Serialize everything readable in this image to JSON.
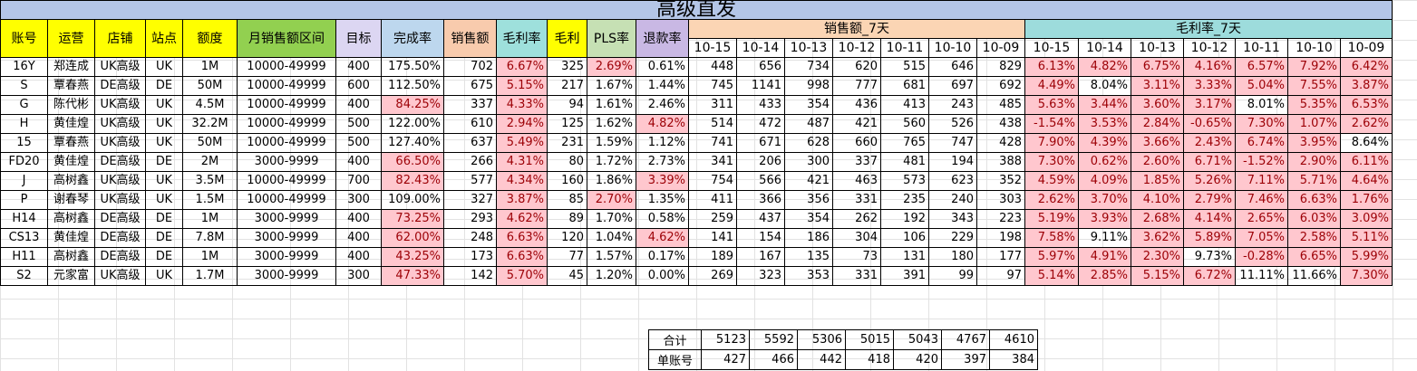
{
  "title": "高级直发",
  "colors": {
    "title_bg": "#b4c6e7",
    "yellow": "#ffff00",
    "green": "#92d050",
    "lilac": "#dcd6f2",
    "blue": "#bdd7ee",
    "peach": "#f8cbad",
    "teal": "#9ee0dc",
    "lime": "#c6e0b4",
    "lavender": "#c9b8e4",
    "sales_bg": "#fbd5b4",
    "margin_bg": "#9ddcdc",
    "highlight_bg": "#ffc7ce",
    "highlight_text": "#9c0006"
  },
  "headers": [
    "账号",
    "运营",
    "店铺",
    "站点",
    "额度",
    "月销售额区间",
    "目标",
    "完成率",
    "销售额",
    "毛利率",
    "毛利",
    "PLS率",
    "退款率"
  ],
  "group_sales": "销售额_7天",
  "group_margin": "毛利率_7天",
  "dates": [
    "10-15",
    "10-14",
    "10-13",
    "10-12",
    "10-11",
    "10-10",
    "10-09"
  ],
  "rows": [
    {
      "cells": [
        "16Y",
        "郑连成",
        "UK高级",
        "UK",
        "1M",
        "10000-49999",
        "400",
        "175.50%",
        "702",
        "6.67%",
        "325",
        "2.69%",
        "0.61%"
      ],
      "flags": [
        0,
        0,
        0,
        0,
        0,
        0,
        0,
        0,
        0,
        1,
        0,
        1,
        0
      ],
      "sales": [
        "448",
        "656",
        "734",
        "620",
        "515",
        "646",
        "829"
      ],
      "margins": [
        "6.13%",
        "4.82%",
        "6.75%",
        "4.16%",
        "6.57%",
        "7.92%",
        "6.42%"
      ],
      "mflags": [
        1,
        1,
        1,
        1,
        1,
        1,
        1
      ]
    },
    {
      "cells": [
        "S",
        "覃春燕",
        "DE高级",
        "DE",
        "50M",
        "10000-49999",
        "600",
        "112.50%",
        "675",
        "5.15%",
        "217",
        "1.67%",
        "1.44%"
      ],
      "flags": [
        0,
        0,
        0,
        0,
        0,
        0,
        0,
        0,
        0,
        1,
        0,
        0,
        0
      ],
      "sales": [
        "745",
        "1141",
        "998",
        "777",
        "681",
        "697",
        "692"
      ],
      "margins": [
        "4.49%",
        "8.04%",
        "3.11%",
        "3.33%",
        "5.04%",
        "7.55%",
        "3.87%"
      ],
      "mflags": [
        1,
        0,
        1,
        1,
        1,
        1,
        1
      ]
    },
    {
      "cells": [
        "G",
        "陈代彬",
        "UK高级",
        "UK",
        "4.5M",
        "10000-49999",
        "400",
        "84.25%",
        "337",
        "4.33%",
        "94",
        "1.61%",
        "2.46%"
      ],
      "flags": [
        0,
        0,
        0,
        0,
        0,
        0,
        0,
        1,
        0,
        1,
        0,
        0,
        0
      ],
      "sales": [
        "311",
        "433",
        "354",
        "436",
        "413",
        "243",
        "485"
      ],
      "margins": [
        "5.63%",
        "3.44%",
        "3.60%",
        "3.17%",
        "8.01%",
        "5.35%",
        "6.53%"
      ],
      "mflags": [
        1,
        1,
        1,
        1,
        0,
        1,
        1
      ]
    },
    {
      "cells": [
        "H",
        "黄佳煌",
        "UK高级",
        "UK",
        "32.2M",
        "10000-49999",
        "500",
        "122.00%",
        "610",
        "2.94%",
        "125",
        "1.62%",
        "4.82%"
      ],
      "flags": [
        0,
        0,
        0,
        0,
        0,
        0,
        0,
        0,
        0,
        1,
        0,
        0,
        1
      ],
      "sales": [
        "514",
        "472",
        "487",
        "421",
        "560",
        "526",
        "438"
      ],
      "margins": [
        "-1.54%",
        "3.53%",
        "2.84%",
        "-0.65%",
        "7.30%",
        "1.07%",
        "2.62%"
      ],
      "mflags": [
        1,
        1,
        1,
        1,
        1,
        1,
        1
      ]
    },
    {
      "cells": [
        "15",
        "覃春燕",
        "UK高级",
        "UK",
        "50M",
        "10000-49999",
        "500",
        "127.40%",
        "637",
        "5.49%",
        "231",
        "1.59%",
        "1.12%"
      ],
      "flags": [
        0,
        0,
        0,
        0,
        0,
        0,
        0,
        0,
        0,
        1,
        0,
        0,
        0
      ],
      "sales": [
        "741",
        "671",
        "628",
        "660",
        "765",
        "747",
        "428"
      ],
      "margins": [
        "7.90%",
        "4.39%",
        "3.66%",
        "2.43%",
        "6.74%",
        "3.95%",
        "8.64%"
      ],
      "mflags": [
        1,
        1,
        1,
        1,
        1,
        1,
        0
      ]
    },
    {
      "cells": [
        "FD20",
        "黄佳煌",
        "DE高级",
        "DE",
        "2M",
        "3000-9999",
        "400",
        "66.50%",
        "266",
        "4.31%",
        "80",
        "1.72%",
        "2.73%"
      ],
      "flags": [
        0,
        0,
        0,
        0,
        0,
        0,
        0,
        1,
        0,
        1,
        0,
        0,
        0
      ],
      "sales": [
        "341",
        "206",
        "300",
        "337",
        "481",
        "194",
        "388"
      ],
      "margins": [
        "7.30%",
        "0.62%",
        "2.60%",
        "6.71%",
        "-1.52%",
        "2.90%",
        "6.11%"
      ],
      "mflags": [
        1,
        1,
        1,
        1,
        1,
        1,
        1
      ]
    },
    {
      "cells": [
        "J",
        "高树鑫",
        "UK高级",
        "UK",
        "3.5M",
        "10000-49999",
        "700",
        "82.43%",
        "577",
        "4.34%",
        "160",
        "1.86%",
        "3.39%"
      ],
      "flags": [
        0,
        0,
        0,
        0,
        0,
        0,
        0,
        1,
        0,
        1,
        0,
        0,
        1
      ],
      "sales": [
        "754",
        "566",
        "421",
        "463",
        "573",
        "623",
        "352"
      ],
      "margins": [
        "4.59%",
        "4.09%",
        "1.85%",
        "5.26%",
        "7.11%",
        "5.71%",
        "4.64%"
      ],
      "mflags": [
        1,
        1,
        1,
        1,
        1,
        1,
        1
      ]
    },
    {
      "cells": [
        "P",
        "谢春琴",
        "UK高级",
        "UK",
        "1.5M",
        "10000-49999",
        "300",
        "109.00%",
        "327",
        "3.87%",
        "85",
        "2.70%",
        "1.35%"
      ],
      "flags": [
        0,
        0,
        0,
        0,
        0,
        0,
        0,
        0,
        0,
        1,
        0,
        1,
        0
      ],
      "sales": [
        "411",
        "366",
        "356",
        "331",
        "235",
        "240",
        "303"
      ],
      "margins": [
        "2.62%",
        "3.70%",
        "4.10%",
        "2.79%",
        "7.46%",
        "6.63%",
        "1.76%"
      ],
      "mflags": [
        1,
        1,
        1,
        1,
        1,
        1,
        1
      ]
    },
    {
      "cells": [
        "H14",
        "高树鑫",
        "DE高级",
        "DE",
        "1M",
        "3000-9999",
        "400",
        "73.25%",
        "293",
        "4.62%",
        "89",
        "1.70%",
        "0.58%"
      ],
      "flags": [
        0,
        0,
        0,
        0,
        0,
        0,
        0,
        1,
        0,
        1,
        0,
        0,
        0
      ],
      "sales": [
        "259",
        "437",
        "354",
        "262",
        "192",
        "343",
        "223"
      ],
      "margins": [
        "5.19%",
        "3.93%",
        "2.68%",
        "4.14%",
        "2.65%",
        "6.03%",
        "3.09%"
      ],
      "mflags": [
        1,
        1,
        1,
        1,
        1,
        1,
        1
      ]
    },
    {
      "cells": [
        "CS13",
        "黄佳煌",
        "DE高级",
        "DE",
        "7.8M",
        "3000-9999",
        "400",
        "62.00%",
        "248",
        "6.63%",
        "120",
        "1.04%",
        "4.62%"
      ],
      "flags": [
        0,
        0,
        0,
        0,
        0,
        0,
        0,
        1,
        0,
        1,
        0,
        0,
        1
      ],
      "sales": [
        "141",
        "154",
        "186",
        "304",
        "106",
        "229",
        "198"
      ],
      "margins": [
        "7.58%",
        "9.11%",
        "3.62%",
        "5.89%",
        "7.05%",
        "2.58%",
        "5.11%"
      ],
      "mflags": [
        1,
        0,
        1,
        1,
        1,
        1,
        1
      ]
    },
    {
      "cells": [
        "H11",
        "高树鑫",
        "DE高级",
        "DE",
        "1M",
        "3000-9999",
        "400",
        "43.25%",
        "173",
        "6.63%",
        "77",
        "1.57%",
        "0.17%"
      ],
      "flags": [
        0,
        0,
        0,
        0,
        0,
        0,
        0,
        1,
        0,
        1,
        0,
        0,
        0
      ],
      "sales": [
        "189",
        "167",
        "135",
        "73",
        "131",
        "180",
        "177"
      ],
      "margins": [
        "5.97%",
        "4.91%",
        "2.30%",
        "9.73%",
        "-0.28%",
        "6.65%",
        "5.99%"
      ],
      "mflags": [
        1,
        1,
        1,
        0,
        1,
        1,
        1
      ]
    },
    {
      "cells": [
        "S2",
        "元家富",
        "UK高级",
        "UK",
        "1.7M",
        "3000-9999",
        "300",
        "47.33%",
        "142",
        "5.70%",
        "45",
        "1.20%",
        "0.00%"
      ],
      "flags": [
        0,
        0,
        0,
        0,
        0,
        0,
        0,
        1,
        0,
        1,
        0,
        0,
        0
      ],
      "sales": [
        "269",
        "323",
        "353",
        "331",
        "391",
        "99",
        "97"
      ],
      "margins": [
        "5.14%",
        "2.85%",
        "5.15%",
        "6.72%",
        "11.11%",
        "11.66%",
        "7.30%"
      ],
      "mflags": [
        1,
        1,
        1,
        1,
        0,
        0,
        1
      ]
    }
  ],
  "totals": {
    "sum_label": "合计",
    "sum": [
      "5123",
      "5592",
      "5306",
      "5015",
      "5043",
      "4767",
      "4610"
    ],
    "avg_label": "单账号",
    "avg": [
      "427",
      "466",
      "442",
      "418",
      "420",
      "397",
      "384"
    ]
  }
}
